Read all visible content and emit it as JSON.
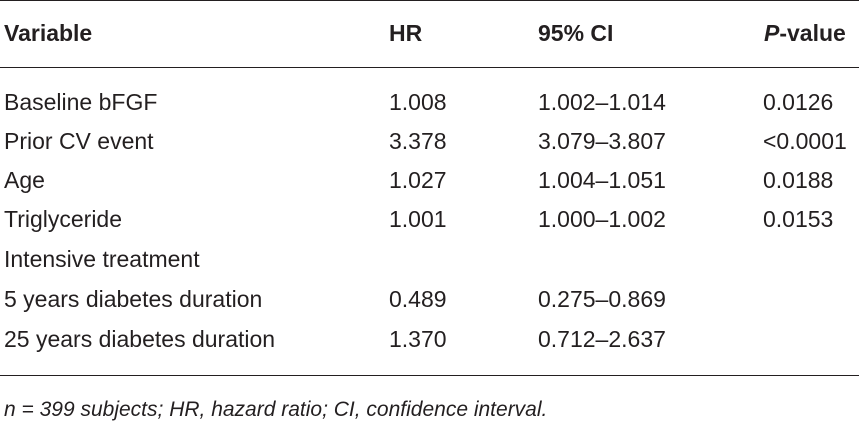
{
  "table": {
    "headers": {
      "variable": "Variable",
      "hr": "HR",
      "ci": "95% CI",
      "p_italic": "P",
      "p_rest": "-value"
    },
    "rows": [
      {
        "variable": "Baseline bFGF",
        "hr": "1.008",
        "ci": "1.002–1.014",
        "p": "0.0126"
      },
      {
        "variable": "Prior CV event",
        "hr": "3.378",
        "ci": "3.079–3.807",
        "p": "<0.0001"
      },
      {
        "variable": "Age",
        "hr": "1.027",
        "ci": "1.004–1.051",
        "p": "0.0188"
      },
      {
        "variable": "Triglyceride",
        "hr": "1.001",
        "ci": "1.000–1.002",
        "p": "0.0153"
      },
      {
        "variable": "Intensive treatment",
        "hr": "",
        "ci": "",
        "p": ""
      },
      {
        "variable": "5 years diabetes duration",
        "hr": "0.489",
        "ci": "0.275–0.869",
        "p": ""
      },
      {
        "variable": "25 years diabetes duration",
        "hr": "1.370",
        "ci": "0.712–2.637",
        "p": ""
      }
    ],
    "footnote": "n = 399 subjects; HR, hazard ratio; CI, confidence interval."
  }
}
